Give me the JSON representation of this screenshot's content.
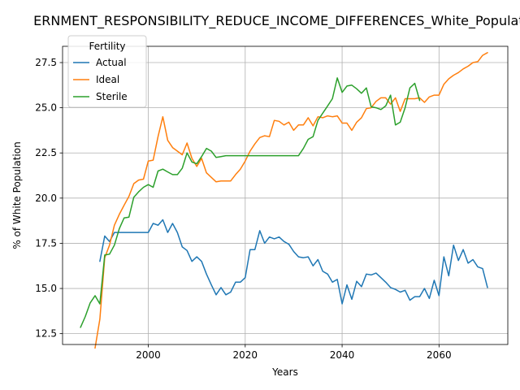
{
  "chart_data": {
    "type": "line",
    "title": "ERNMENT_RESPONSIBILITY_REDUCE_INCOME_DIFFERENCES_White_Populatio",
    "xlabel": "Years",
    "ylabel": "% of White Population",
    "xlim": [
      1982.3,
      2074.2
    ],
    "ylim": [
      11.9,
      28.4
    ],
    "xticks": [
      2000,
      2020,
      2040,
      2060
    ],
    "yticks": [
      12.5,
      15.0,
      17.5,
      20.0,
      22.5,
      25.0,
      27.5
    ],
    "ytick_labels": [
      "12.5",
      "15.0",
      "17.5",
      "20.0",
      "22.5",
      "25.0",
      "27.5"
    ],
    "grid": true,
    "legend": {
      "title": "Fertility",
      "position": "top-left"
    },
    "series": [
      {
        "name": "Actual",
        "color": "#1f77b4",
        "x": [
          1990,
          1991,
          1992,
          1993,
          1994,
          1995,
          1996,
          1997,
          1998,
          1999,
          2000,
          2001,
          2002,
          2003,
          2004,
          2005,
          2006,
          2007,
          2008,
          2009,
          2010,
          2011,
          2012,
          2013,
          2014,
          2015,
          2016,
          2017,
          2018,
          2019,
          2020,
          2021,
          2022,
          2023,
          2024,
          2025,
          2026,
          2027,
          2028,
          2029,
          2030,
          2031,
          2032,
          2033,
          2034,
          2035,
          2036,
          2037,
          2038,
          2039,
          2040,
          2041,
          2042,
          2043,
          2044,
          2045,
          2046,
          2047,
          2048,
          2049,
          2050,
          2051,
          2052,
          2053,
          2054,
          2055,
          2056,
          2057,
          2058,
          2059,
          2060,
          2061,
          2062,
          2063,
          2064,
          2065,
          2066,
          2067,
          2068,
          2069,
          2070
        ],
        "values": [
          16.5,
          17.9,
          17.6,
          18.1,
          18.1,
          18.1,
          18.1,
          18.1,
          18.1,
          18.1,
          18.1,
          18.6,
          18.5,
          18.8,
          18.1,
          18.6,
          18.1,
          17.3,
          17.1,
          16.5,
          16.75,
          16.5,
          15.8,
          15.2,
          14.65,
          15.05,
          14.65,
          14.8,
          15.35,
          15.35,
          15.6,
          17.15,
          17.15,
          18.2,
          17.5,
          17.85,
          17.75,
          17.85,
          17.6,
          17.45,
          17.05,
          16.75,
          16.7,
          16.75,
          16.25,
          16.6,
          15.95,
          15.8,
          15.35,
          15.5,
          14.15,
          15.2,
          14.4,
          15.4,
          15.1,
          15.8,
          15.75,
          15.85,
          15.6,
          15.35,
          15.05,
          14.95,
          14.8,
          14.9,
          14.35,
          14.55,
          14.55,
          15.0,
          14.45,
          15.45,
          14.6,
          16.75,
          15.7,
          17.4,
          16.55,
          17.15,
          16.4,
          16.6,
          16.2,
          16.1,
          15.05
        ]
      },
      {
        "name": "Ideal",
        "color": "#ff7f0e",
        "x": [
          1989,
          1990,
          1991,
          1992,
          1993,
          1994,
          1995,
          1996,
          1997,
          1998,
          1999,
          2000,
          2001,
          2002,
          2003,
          2004,
          2005,
          2006,
          2007,
          2008,
          2009,
          2010,
          2011,
          2012,
          2013,
          2014,
          2015,
          2016,
          2017,
          2018,
          2019,
          2020,
          2021,
          2022,
          2023,
          2024,
          2025,
          2026,
          2027,
          2028,
          2029,
          2030,
          2031,
          2032,
          2033,
          2034,
          2035,
          2036,
          2037,
          2038,
          2039,
          2040,
          2041,
          2042,
          2043,
          2044,
          2045,
          2046,
          2047,
          2048,
          2049,
          2050,
          2051,
          2052,
          2053,
          2054,
          2055,
          2056,
          2057,
          2058,
          2059,
          2060,
          2061,
          2062,
          2063,
          2064,
          2065,
          2066,
          2067,
          2068,
          2069,
          2070
        ],
        "values": [
          11.7,
          13.3,
          16.7,
          17.4,
          18.5,
          19.1,
          19.6,
          20.1,
          20.8,
          21.0,
          21.05,
          22.05,
          22.1,
          23.4,
          24.5,
          23.2,
          22.8,
          22.6,
          22.4,
          23.05,
          22.2,
          21.75,
          22.2,
          21.4,
          21.15,
          20.9,
          20.95,
          20.95,
          20.95,
          21.3,
          21.6,
          22.05,
          22.6,
          23.0,
          23.35,
          23.45,
          23.4,
          24.3,
          24.25,
          24.05,
          24.2,
          23.75,
          24.05,
          24.05,
          24.45,
          24.0,
          24.5,
          24.45,
          24.55,
          24.5,
          24.55,
          24.15,
          24.15,
          23.75,
          24.2,
          24.45,
          24.95,
          25.0,
          25.35,
          25.55,
          25.55,
          25.2,
          25.55,
          24.8,
          25.5,
          25.5,
          25.5,
          25.55,
          25.3,
          25.6,
          25.7,
          25.7,
          26.3,
          26.6,
          26.8,
          26.95,
          27.15,
          27.3,
          27.5,
          27.55,
          27.9,
          28.05
        ]
      },
      {
        "name": "Sterile",
        "color": "#2ca02c",
        "x": [
          1986,
          1987,
          1988,
          1989,
          1990,
          1991,
          1992,
          1993,
          1994,
          1995,
          1996,
          1997,
          1998,
          1999,
          2000,
          2001,
          2002,
          2003,
          2004,
          2005,
          2006,
          2007,
          2008,
          2009,
          2010,
          2011,
          2012,
          2013,
          2014,
          2015,
          2016,
          2017,
          2018,
          2019,
          2020,
          2021,
          2022,
          2023,
          2024,
          2025,
          2026,
          2027,
          2028,
          2029,
          2030,
          2031,
          2032,
          2033,
          2034,
          2035,
          2036,
          2037,
          2038,
          2039,
          2040,
          2041,
          2042,
          2043,
          2044,
          2045,
          2046,
          2047,
          2048,
          2049,
          2050,
          2051,
          2052,
          2053,
          2054,
          2055,
          2056
        ],
        "values": [
          12.85,
          13.45,
          14.2,
          14.6,
          14.15,
          16.85,
          16.9,
          17.4,
          18.3,
          18.9,
          18.95,
          20.05,
          20.35,
          20.6,
          20.75,
          20.6,
          21.5,
          21.6,
          21.45,
          21.3,
          21.3,
          21.65,
          22.5,
          22.0,
          21.9,
          22.3,
          22.75,
          22.6,
          22.25,
          22.3,
          22.35,
          22.35,
          22.35,
          22.35,
          22.35,
          22.35,
          22.35,
          22.35,
          22.35,
          22.35,
          22.35,
          22.35,
          22.35,
          22.35,
          22.35,
          22.35,
          22.75,
          23.25,
          23.4,
          24.3,
          24.7,
          25.1,
          25.5,
          26.65,
          25.85,
          26.2,
          26.25,
          26.05,
          25.8,
          26.1,
          25.05,
          25.0,
          24.9,
          25.1,
          25.7,
          24.05,
          24.2,
          25.0,
          26.1,
          26.35,
          25.4
        ]
      }
    ]
  }
}
